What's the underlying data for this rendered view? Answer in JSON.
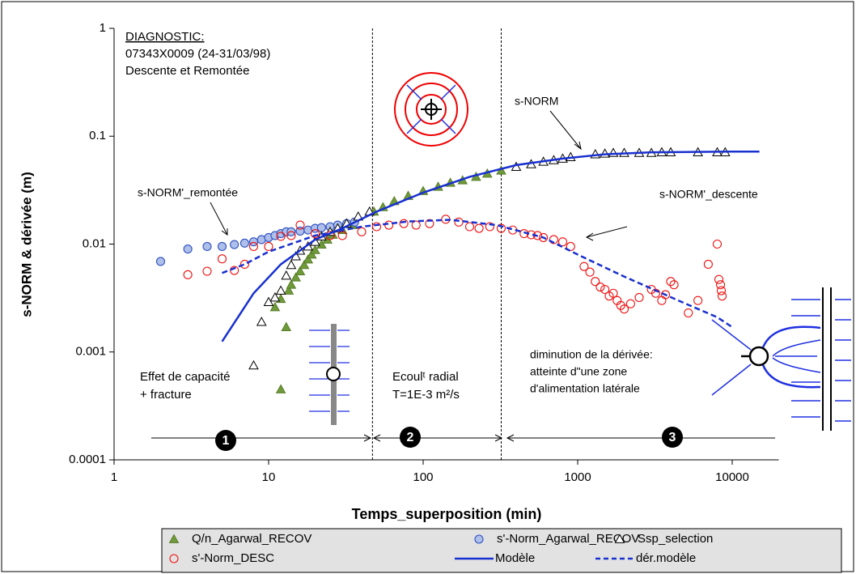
{
  "chart_data": {
    "type": "scatter",
    "log_x": true,
    "log_y": true,
    "xlabel": "Temps_superposition (min)",
    "ylabel": "s-NORM  & dérivée (m)",
    "xlim": [
      1,
      20000
    ],
    "xticks": [
      1,
      10,
      100,
      1000,
      10000
    ],
    "ylim": [
      0.0001,
      1
    ],
    "yticks": [
      0.0001,
      0.001,
      0.01,
      0.1,
      1
    ],
    "vlines": [
      47,
      320
    ],
    "annotations": [
      "DIAGNOSTIC:",
      "07343X0009 (24-31/03/98)",
      "Descente et Remontée",
      "s-NORM",
      "s-NORM'_remontée",
      "s-NORM'_descente",
      "Effet de capacité",
      "+ fracture",
      "Ecoulᵗ radial",
      "T=1E-3 m²/s",
      "diminution de la dérivée:",
      "atteinte d\"une zone",
      "d'alimentation latérale",
      "1",
      "2",
      "3"
    ],
    "series": [
      {
        "name": "Q/n_Agarwal_RECOV",
        "marker": "triangle",
        "color": "#5a7d2a",
        "fill": "#6f9a3a",
        "x": [
          12,
          13,
          11,
          12,
          13.5,
          14,
          15,
          16,
          17,
          18,
          19,
          20,
          22,
          24,
          26,
          30,
          35,
          48,
          55,
          65,
          80,
          100,
          125,
          150,
          180,
          220,
          260,
          320
        ],
        "values": [
          0.00045,
          0.0017,
          0.0026,
          0.0031,
          0.0037,
          0.0042,
          0.0049,
          0.0056,
          0.0064,
          0.0072,
          0.008,
          0.0088,
          0.0099,
          0.011,
          0.0122,
          0.0135,
          0.015,
          0.02,
          0.022,
          0.025,
          0.028,
          0.031,
          0.034,
          0.037,
          0.039,
          0.042,
          0.045,
          0.048
        ]
      },
      {
        "name": "s'-Norm_Agarwal_RECOV",
        "marker": "circle",
        "color": "#3050c0",
        "fill": "#aec0ea",
        "x": [
          2,
          3,
          4,
          5,
          6,
          7,
          8,
          9,
          10,
          11,
          12,
          13,
          14,
          16,
          18,
          20,
          22,
          25,
          28,
          32,
          36
        ],
        "values": [
          0.0069,
          0.009,
          0.0095,
          0.0095,
          0.0099,
          0.0102,
          0.0105,
          0.011,
          0.0115,
          0.012,
          0.0125,
          0.013,
          0.013,
          0.0132,
          0.0135,
          0.014,
          0.0142,
          0.0145,
          0.015,
          0.0155,
          0.016
        ]
      },
      {
        "name": "Ssp_selection",
        "marker": "triangle",
        "color": "#000000",
        "fill": "#ffffff",
        "x": [
          8,
          9,
          10,
          11,
          12,
          13,
          14,
          15,
          16,
          18,
          20,
          22,
          25,
          28,
          32,
          38,
          45,
          400,
          500,
          600,
          700,
          800,
          900,
          1300,
          1500,
          1700,
          2000,
          2500,
          3000,
          3500,
          4000,
          6000,
          8000,
          9000
        ],
        "values": [
          0.00075,
          0.0019,
          0.0029,
          0.0032,
          0.0037,
          0.0051,
          0.0064,
          0.0077,
          0.0087,
          0.0095,
          0.0105,
          0.0118,
          0.013,
          0.014,
          0.0155,
          0.018,
          0.02,
          0.052,
          0.055,
          0.058,
          0.06,
          0.062,
          0.064,
          0.068,
          0.069,
          0.07,
          0.07,
          0.07,
          0.07,
          0.071,
          0.071,
          0.071,
          0.071,
          0.071
        ]
      },
      {
        "name": "s'-Norm_DESC",
        "marker": "circle",
        "color": "#ee1111",
        "fill": "none",
        "x": [
          3,
          4,
          5,
          6,
          7,
          8,
          10,
          12,
          14,
          16,
          20,
          25,
          30,
          40,
          50,
          60,
          75,
          90,
          110,
          140,
          170,
          200,
          230,
          270,
          320,
          380,
          450,
          500,
          550,
          600,
          700,
          800,
          900,
          1100,
          1200,
          1300,
          1400,
          1500,
          1600,
          1700,
          1800,
          1900,
          2000,
          2200,
          2500,
          3000,
          3200,
          3500,
          3700,
          4000,
          4200,
          5200,
          6000,
          7000,
          8000,
          8200,
          8400,
          8500,
          8600
        ],
        "values": [
          0.0052,
          0.0056,
          0.0073,
          0.0057,
          0.0065,
          0.0095,
          0.0095,
          0.0118,
          0.012,
          0.015,
          0.0125,
          0.012,
          0.012,
          0.013,
          0.0145,
          0.015,
          0.0155,
          0.015,
          0.0155,
          0.017,
          0.016,
          0.0145,
          0.014,
          0.0145,
          0.014,
          0.0135,
          0.0125,
          0.0122,
          0.012,
          0.0115,
          0.011,
          0.0105,
          0.0095,
          0.0062,
          0.0055,
          0.0045,
          0.004,
          0.0038,
          0.0033,
          0.0035,
          0.003,
          0.0027,
          0.0025,
          0.0028,
          0.0032,
          0.0038,
          0.0035,
          0.003,
          0.0034,
          0.0045,
          0.0042,
          0.0023,
          0.003,
          0.0065,
          0.01,
          0.0047,
          0.0042,
          0.0037,
          0.0033
        ]
      },
      {
        "name": "Modèle",
        "marker": "line",
        "color": "#1830d0",
        "dash": false,
        "x": [
          5,
          8,
          12,
          20,
          30,
          50,
          100,
          200,
          400,
          800,
          1500,
          3000,
          10000,
          15000
        ],
        "values": [
          0.00125,
          0.0035,
          0.0065,
          0.011,
          0.014,
          0.02,
          0.03,
          0.042,
          0.054,
          0.062,
          0.068,
          0.071,
          0.072,
          0.072
        ]
      },
      {
        "name": "dér.modèle",
        "marker": "line",
        "color": "#1830d0",
        "dash": true,
        "x": [
          5,
          7,
          10,
          20,
          40,
          80,
          150,
          300,
          600,
          1000,
          2000,
          5000,
          8000,
          10000
        ],
        "values": [
          0.0054,
          0.0065,
          0.0085,
          0.012,
          0.0145,
          0.0162,
          0.0168,
          0.015,
          0.0115,
          0.008,
          0.005,
          0.0028,
          0.0021,
          0.0017
        ]
      }
    ]
  }
}
